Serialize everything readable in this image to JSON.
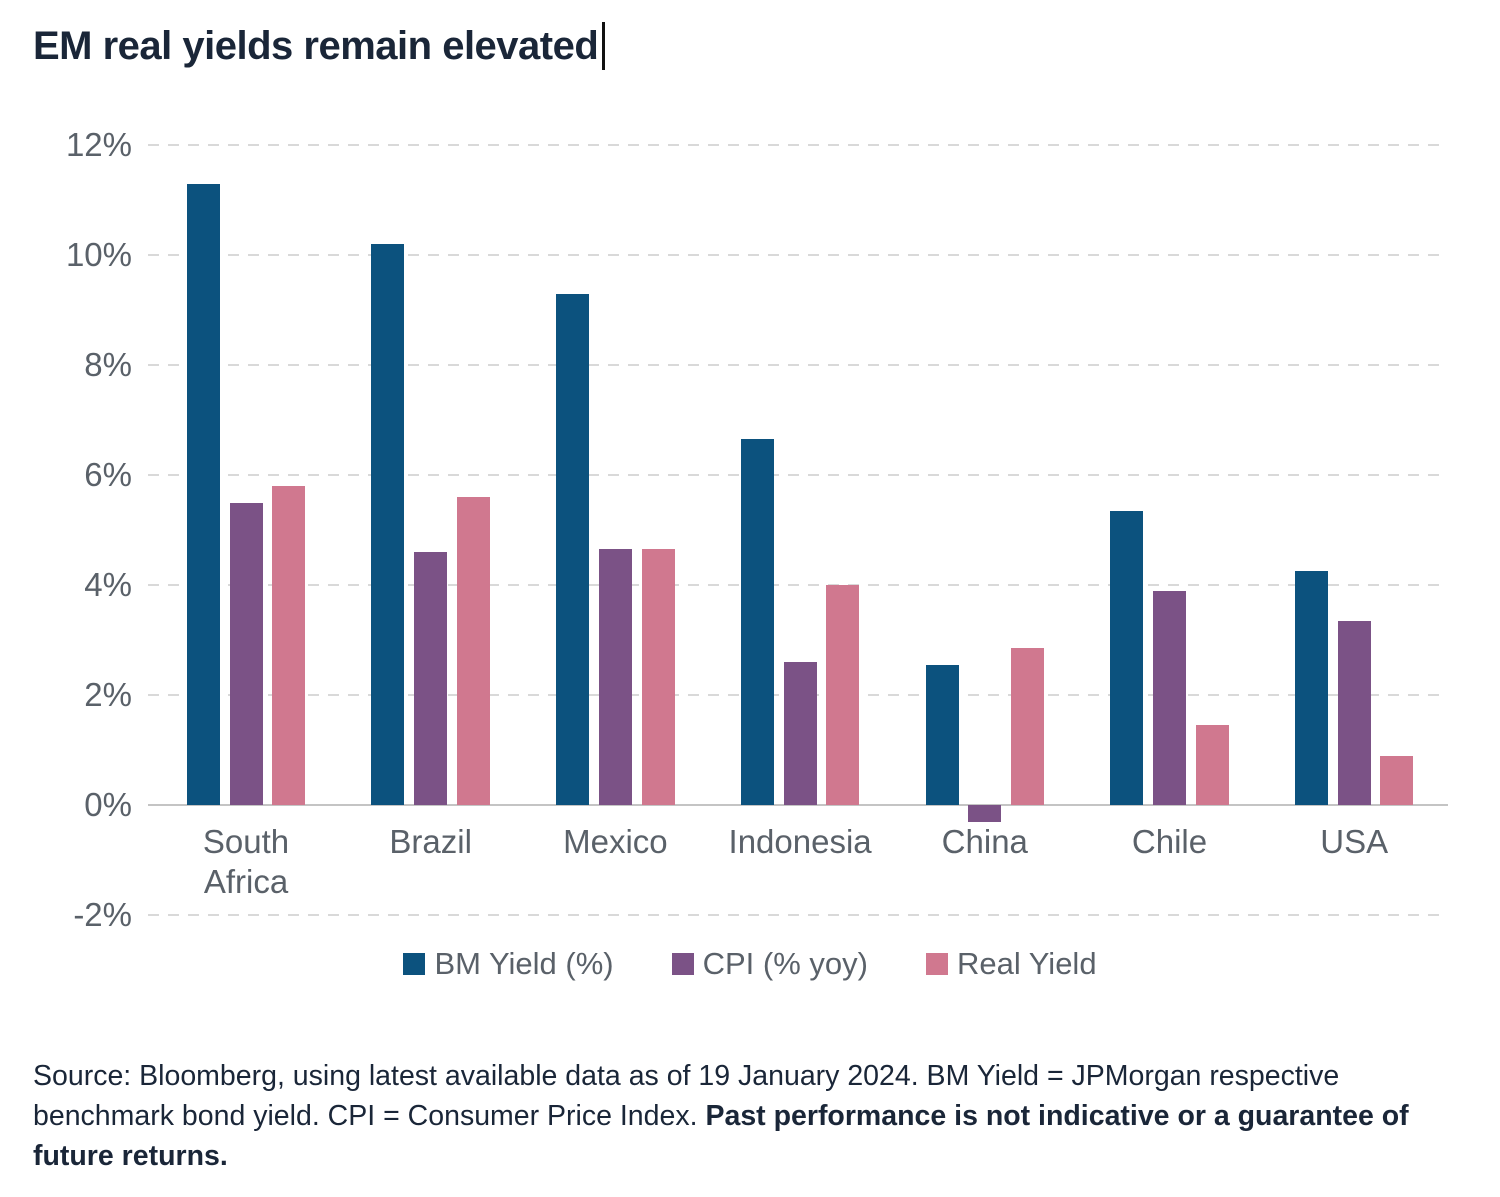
{
  "chart_data": {
    "type": "bar",
    "title": "EM real yields remain elevated",
    "categories": [
      "South Africa",
      "Brazil",
      "Mexico",
      "Indonesia",
      "China",
      "Chile",
      "USA"
    ],
    "series": [
      {
        "name": "BM Yield (%)",
        "color": "#0c527e",
        "values": [
          11.3,
          10.2,
          9.3,
          6.65,
          2.55,
          5.35,
          4.25
        ]
      },
      {
        "name": "CPI (% yoy)",
        "color": "#7b5286",
        "values": [
          5.5,
          4.6,
          4.65,
          2.6,
          -0.3,
          3.9,
          3.35
        ]
      },
      {
        "name": "Real Yield",
        "color": "#d0788f",
        "values": [
          5.8,
          5.6,
          4.65,
          4.0,
          2.85,
          1.45,
          0.9
        ]
      }
    ],
    "ylim": [
      -2,
      12
    ],
    "yticks": [
      {
        "value": 12,
        "label": "12%"
      },
      {
        "value": 10,
        "label": "10%"
      },
      {
        "value": 8,
        "label": "8%"
      },
      {
        "value": 6,
        "label": "6%"
      },
      {
        "value": 4,
        "label": "4%"
      },
      {
        "value": 2,
        "label": "2%"
      },
      {
        "value": 0,
        "label": "0%"
      },
      {
        "value": -2,
        "label": "-2%"
      }
    ],
    "grid": "horizontal-dashed",
    "legend_position": "bottom"
  },
  "source": {
    "regular": "Source: Bloomberg, using latest available data as of 19 January 2024. BM Yield = JPMorgan respective benchmark bond yield. CPI = Consumer Price Index.",
    "bold": "Past performance is not indicative or a guarantee of future returns."
  }
}
